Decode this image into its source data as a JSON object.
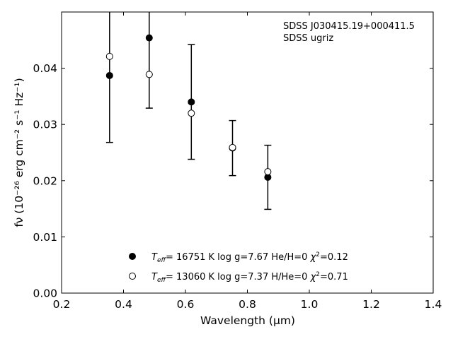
{
  "chart_data": {
    "type": "scatter",
    "xlabel": "Wavelength (μm)",
    "ylabel": "fν (10⁻²⁶ erg cm⁻² s⁻¹ Hz⁻¹)",
    "xlim": [
      0.2,
      1.4
    ],
    "ylim": [
      0.0,
      0.05
    ],
    "x_ticks": [
      "0.2",
      "0.4",
      "0.6",
      "0.8",
      "1.0",
      "1.2",
      "1.4"
    ],
    "y_ticks": [
      "0.00",
      "0.01",
      "0.02",
      "0.03",
      "0.04"
    ],
    "annotations": [
      "SDSS J030415.19+000411.5",
      "SDSS ugriz"
    ],
    "legend_position": "lower-center",
    "observed": {
      "x": [
        0.355,
        0.483,
        0.619,
        0.752,
        0.866
      ],
      "y": [
        0.0387,
        0.0454,
        0.034,
        0.0258,
        0.0206
      ],
      "yerr": [
        0.0119,
        0.0125,
        0.0102,
        0.0049,
        0.0057
      ]
    },
    "series": [
      {
        "name": "Teff= 16751 K  log g=7.67  He/H=0  χ²=0.12",
        "label_parts": [
          "T",
          "eff",
          "= 16751 K  log g=7.67  He/H=0  ",
          "χ",
          "2",
          "=0.12"
        ],
        "marker": "filled-circle",
        "x": [
          0.355,
          0.483,
          0.619,
          0.752,
          0.866
        ],
        "y": [
          0.0387,
          0.0454,
          0.034,
          0.0258,
          0.0206
        ]
      },
      {
        "name": "Teff= 13060 K  log g=7.37  H/He=0  χ²=0.71",
        "label_parts": [
          "T",
          "eff",
          "= 13060 K  log g=7.37  H/He=0  ",
          "χ",
          "2",
          "=0.71"
        ],
        "marker": "open-circle",
        "x": [
          0.355,
          0.483,
          0.619,
          0.752,
          0.866
        ],
        "y": [
          0.0421,
          0.0389,
          0.032,
          0.0259,
          0.0216
        ]
      }
    ]
  }
}
